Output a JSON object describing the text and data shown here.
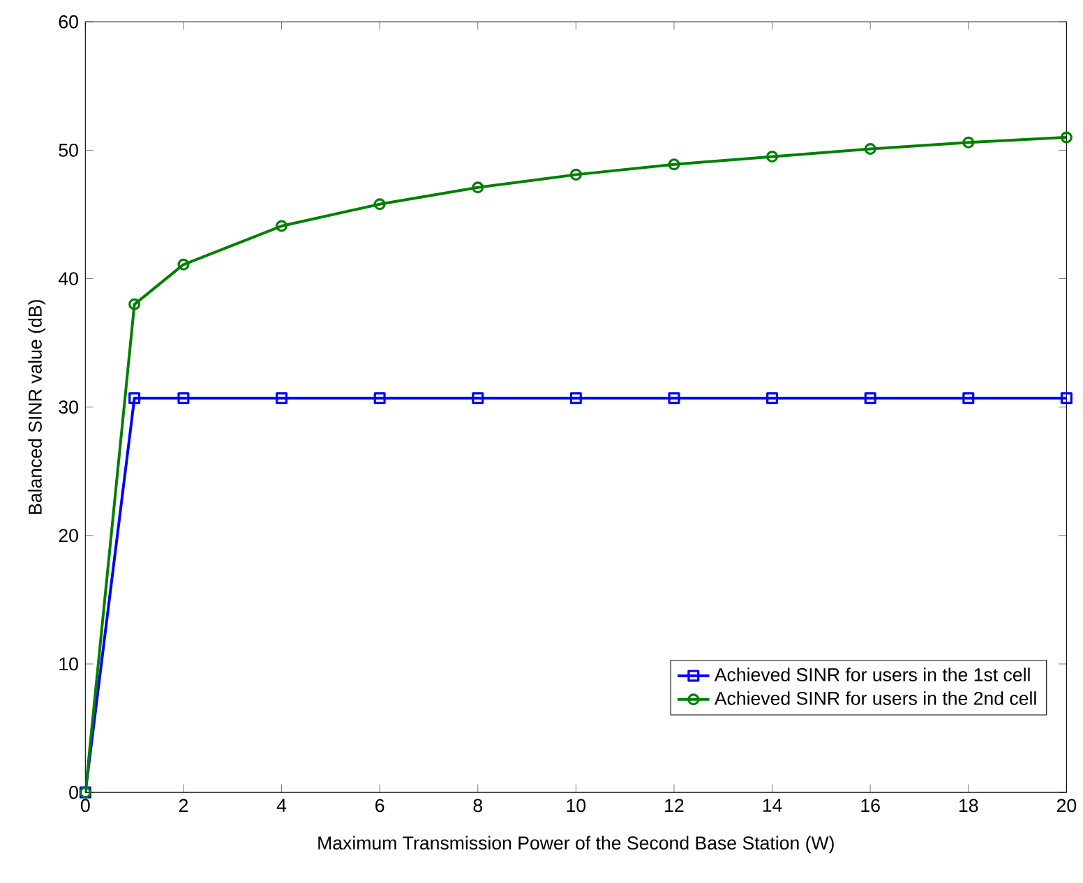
{
  "chart_data": {
    "type": "line",
    "xlabel": "Maximum Transmission Power of the Second Base Station (W)",
    "ylabel": "Balanced SINR value (dB)",
    "x": [
      0,
      1,
      2,
      4,
      6,
      8,
      10,
      12,
      14,
      16,
      18,
      20
    ],
    "xlim": [
      0,
      20
    ],
    "ylim": [
      0,
      60
    ],
    "xticks": [
      0,
      2,
      4,
      6,
      8,
      10,
      12,
      14,
      16,
      18,
      20
    ],
    "yticks": [
      0,
      10,
      20,
      30,
      40,
      50,
      60
    ],
    "grid": false,
    "legend": "bottom right",
    "line_style": "solid",
    "series": [
      {
        "name": "Achieved SINR for users in the 1st cell",
        "color": "#0000ff",
        "marker": "square",
        "values": [
          0,
          30.7,
          30.7,
          30.7,
          30.7,
          30.7,
          30.7,
          30.7,
          30.7,
          30.7,
          30.7,
          30.7
        ]
      },
      {
        "name": "Achieved SINR for users in the 2nd cell",
        "color": "#007f00",
        "marker": "circle",
        "values": [
          0,
          38,
          41.1,
          44.1,
          45.8,
          47.1,
          48.1,
          48.9,
          49.5,
          50.1,
          50.6,
          51
        ]
      }
    ]
  }
}
